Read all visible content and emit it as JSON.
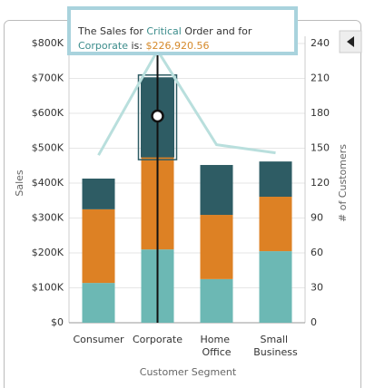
{
  "chart_data": {
    "type": "bar",
    "categories": [
      "Consumer",
      "Corporate",
      "Home Office",
      "Small Business"
    ],
    "series": [
      {
        "color": "#6cb8b4",
        "values": [
          114,
          210,
          125,
          205
        ]
      },
      {
        "color": "#dd8124",
        "values": [
          211,
          265,
          184,
          156
        ]
      },
      {
        "name": "Critical",
        "color": "#2e5c64",
        "values": [
          88,
          226.92056,
          143,
          101
        ]
      },
      {
        "color": "#b9dfdd",
        "axis": "y2",
        "type": "line",
        "values": [
          144,
          234,
          153,
          146
        ]
      }
    ],
    "ylim": [
      0,
      800
    ],
    "yticks": [
      {
        "value": 0,
        "label": "$0"
      },
      {
        "value": 100,
        "label": "$100K"
      },
      {
        "value": 200,
        "label": "$200K"
      },
      {
        "value": 300,
        "label": "$300K"
      },
      {
        "value": 400,
        "label": "$400K"
      },
      {
        "value": 500,
        "label": "$500K"
      },
      {
        "value": 600,
        "label": "$600K"
      },
      {
        "value": 700,
        "label": "$700K"
      },
      {
        "value": 800,
        "label": "$800K"
      }
    ],
    "y2lim": [
      0,
      240
    ],
    "y2ticks": [
      0,
      30,
      60,
      90,
      120,
      150,
      180,
      210,
      240
    ],
    "ylabel": "Sales",
    "y2label": "# of Customers",
    "xlabel": "Customer Segment",
    "grid": true,
    "tooltip": {
      "prefix": "The Sales for ",
      "middle": " Order and for ",
      "suffix": " is: ",
      "value_label": "$226,920.56"
    }
  }
}
